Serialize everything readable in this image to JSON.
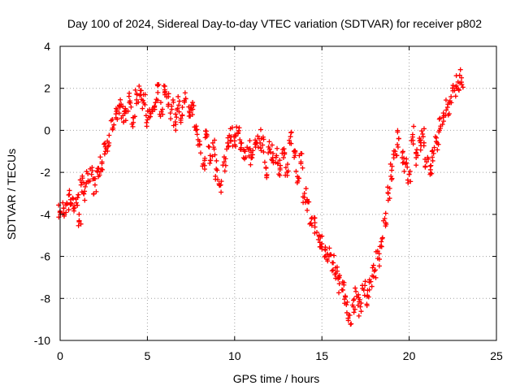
{
  "chart_data": {
    "type": "scatter",
    "title": "Day 100 of 2024, Sidereal Day-to-day VTEC variation (SDTVAR) for receiver p802",
    "xlabel": "GPS time / hours",
    "ylabel": "SDTVAR / TECUs",
    "xlim": [
      0,
      25
    ],
    "ylim": [
      -10,
      4
    ],
    "xticks": [
      "0",
      "5",
      "10",
      "15",
      "20",
      "25"
    ],
    "yticks": [
      "-10",
      "-8",
      "-6",
      "-4",
      "-2",
      "0",
      "2",
      "4"
    ],
    "grid": true,
    "marker": "+",
    "series": [
      {
        "name": "SDTVAR",
        "color": "#ff0000",
        "points": [
          [
            0.0,
            -3.9
          ],
          [
            0.2,
            -3.7
          ],
          [
            0.4,
            -3.5
          ],
          [
            0.6,
            -3.3
          ],
          [
            0.8,
            -3.6
          ],
          [
            1.0,
            -3.2
          ],
          [
            1.1,
            -4.3
          ],
          [
            1.2,
            -2.6
          ],
          [
            1.4,
            -2.9
          ],
          [
            1.6,
            -2.4
          ],
          [
            1.8,
            -2.1
          ],
          [
            2.0,
            -2.6
          ],
          [
            2.2,
            -1.8
          ],
          [
            2.4,
            -1.5
          ],
          [
            2.6,
            -1.0
          ],
          [
            2.8,
            -0.6
          ],
          [
            3.0,
            0.1
          ],
          [
            3.2,
            0.6
          ],
          [
            3.4,
            1.2
          ],
          [
            3.6,
            0.7
          ],
          [
            3.8,
            0.9
          ],
          [
            4.0,
            1.4
          ],
          [
            4.2,
            0.6
          ],
          [
            4.4,
            1.7
          ],
          [
            4.6,
            1.9
          ],
          [
            4.8,
            1.3
          ],
          [
            5.0,
            0.5
          ],
          [
            5.2,
            0.8
          ],
          [
            5.4,
            1.1
          ],
          [
            5.6,
            1.8
          ],
          [
            5.8,
            0.9
          ],
          [
            6.0,
            2.1
          ],
          [
            6.2,
            1.6
          ],
          [
            6.4,
            1.0
          ],
          [
            6.6,
            0.4
          ],
          [
            6.8,
            1.2
          ],
          [
            7.0,
            0.7
          ],
          [
            7.2,
            1.5
          ],
          [
            7.4,
            0.9
          ],
          [
            7.6,
            1.0
          ],
          [
            7.8,
            0.2
          ],
          [
            8.0,
            -0.7
          ],
          [
            8.2,
            -1.6
          ],
          [
            8.4,
            -0.3
          ],
          [
            8.6,
            -1.2
          ],
          [
            8.8,
            -0.8
          ],
          [
            9.0,
            -1.9
          ],
          [
            9.2,
            -2.6
          ],
          [
            9.4,
            -1.5
          ],
          [
            9.6,
            -0.6
          ],
          [
            9.8,
            -0.3
          ],
          [
            10.0,
            -0.5
          ],
          [
            10.2,
            -0.1
          ],
          [
            10.4,
            -0.6
          ],
          [
            10.6,
            -1.0
          ],
          [
            10.8,
            -0.9
          ],
          [
            11.0,
            -1.3
          ],
          [
            11.2,
            -0.8
          ],
          [
            11.4,
            -0.4
          ],
          [
            11.6,
            -0.7
          ],
          [
            11.8,
            -1.8
          ],
          [
            12.0,
            -0.9
          ],
          [
            12.2,
            -1.1
          ],
          [
            12.4,
            -1.2
          ],
          [
            12.6,
            -1.8
          ],
          [
            12.8,
            -1.3
          ],
          [
            13.0,
            -2.0
          ],
          [
            13.2,
            -0.3
          ],
          [
            13.4,
            -1.0
          ],
          [
            13.6,
            -2.2
          ],
          [
            13.8,
            -1.5
          ],
          [
            14.0,
            -3.0
          ],
          [
            14.2,
            -3.4
          ],
          [
            14.4,
            -4.2
          ],
          [
            14.6,
            -4.6
          ],
          [
            14.8,
            -5.2
          ],
          [
            15.0,
            -5.4
          ],
          [
            15.2,
            -5.7
          ],
          [
            15.4,
            -6.0
          ],
          [
            15.6,
            -6.3
          ],
          [
            15.8,
            -6.8
          ],
          [
            16.0,
            -7.3
          ],
          [
            16.2,
            -7.6
          ],
          [
            16.4,
            -8.3
          ],
          [
            16.6,
            -8.8
          ],
          [
            16.8,
            -8.4
          ],
          [
            17.0,
            -7.9
          ],
          [
            17.2,
            -8.4
          ],
          [
            17.4,
            -7.6
          ],
          [
            17.6,
            -7.9
          ],
          [
            17.8,
            -7.2
          ],
          [
            18.0,
            -6.7
          ],
          [
            18.2,
            -6.1
          ],
          [
            18.4,
            -5.3
          ],
          [
            18.6,
            -4.2
          ],
          [
            18.8,
            -3.0
          ],
          [
            19.0,
            -1.9
          ],
          [
            19.2,
            -1.0
          ],
          [
            19.4,
            -0.4
          ],
          [
            19.6,
            -1.3
          ],
          [
            19.8,
            -1.6
          ],
          [
            20.0,
            -2.1
          ],
          [
            20.2,
            -0.2
          ],
          [
            20.4,
            -1.3
          ],
          [
            20.6,
            -0.5
          ],
          [
            20.8,
            -0.3
          ],
          [
            21.0,
            -1.5
          ],
          [
            21.2,
            -2.1
          ],
          [
            21.4,
            -1.1
          ],
          [
            21.6,
            -0.6
          ],
          [
            21.8,
            0.2
          ],
          [
            22.0,
            0.7
          ],
          [
            22.2,
            1.1
          ],
          [
            22.4,
            1.6
          ],
          [
            22.6,
            1.9
          ],
          [
            22.8,
            2.3
          ],
          [
            23.0,
            2.5
          ]
        ]
      }
    ]
  }
}
